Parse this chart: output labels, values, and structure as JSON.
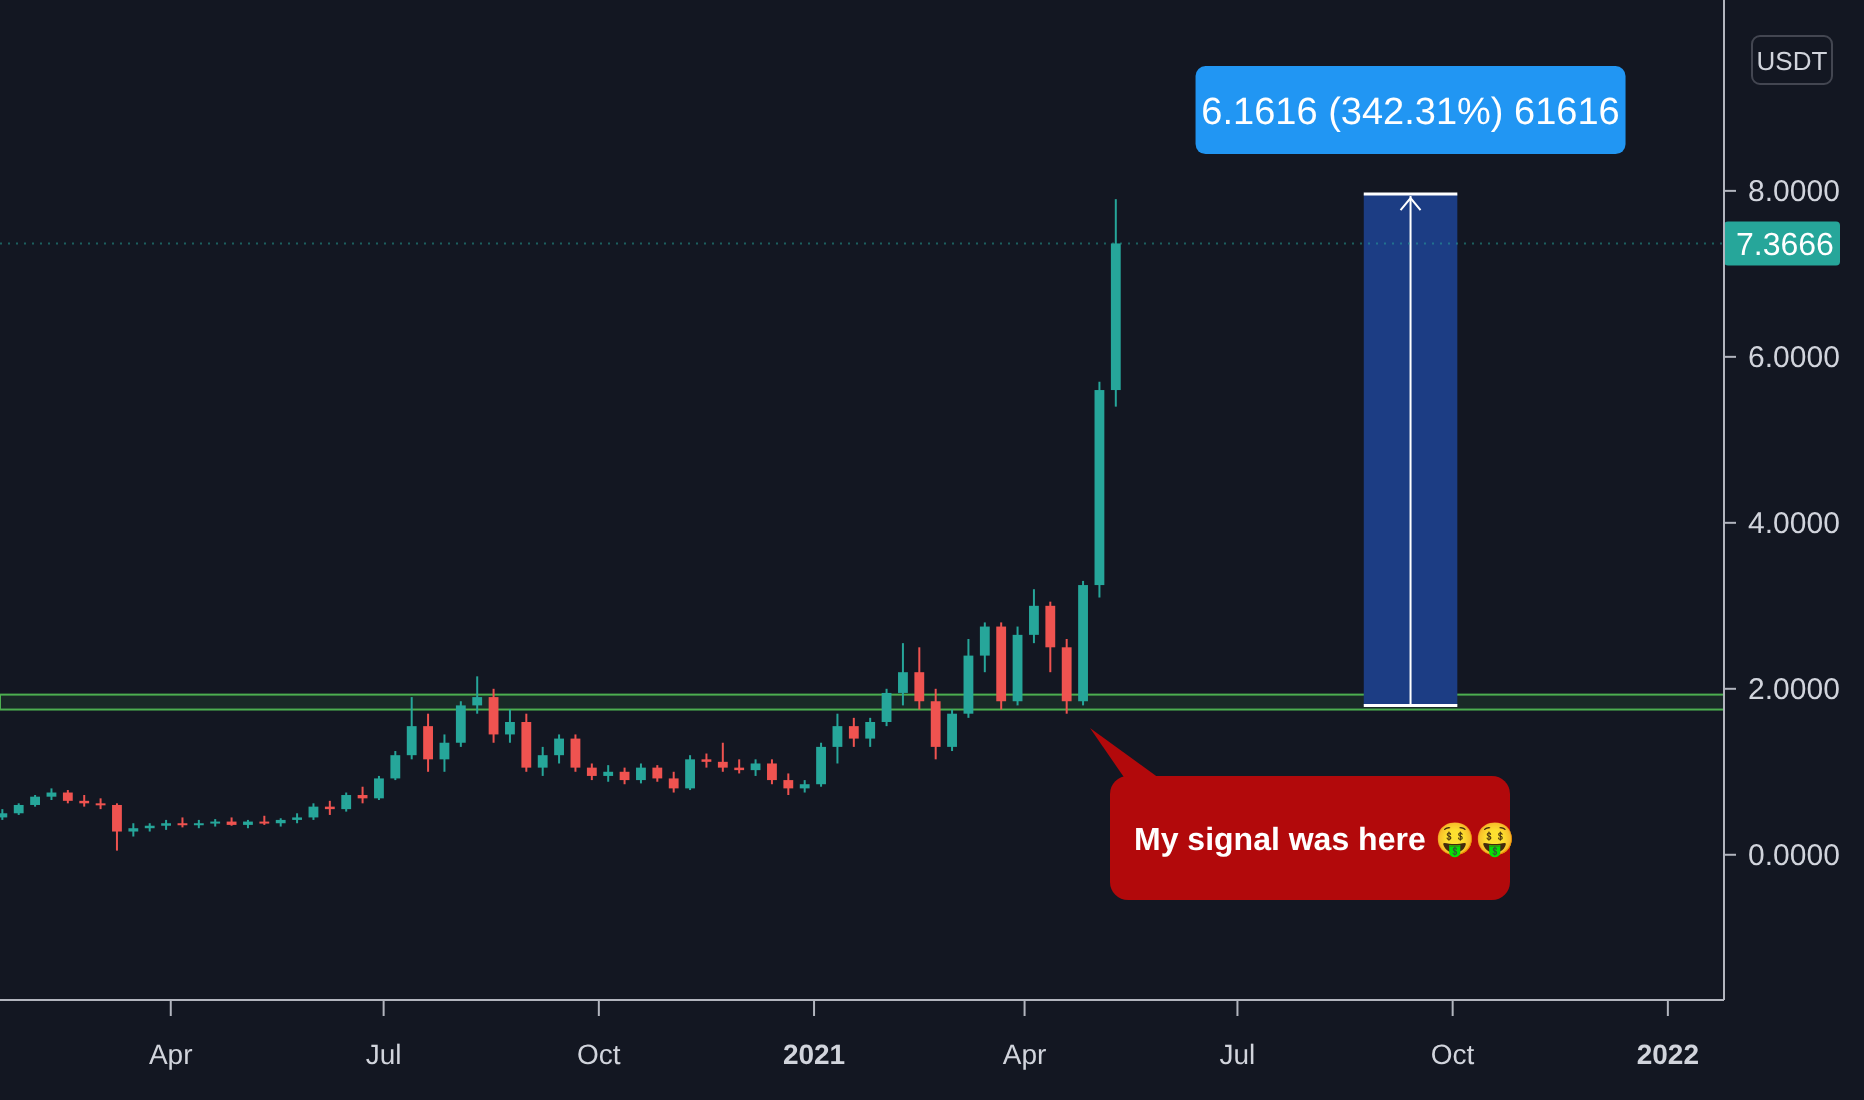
{
  "chart_data": {
    "type": "candlestick",
    "ylabel": "USDT",
    "x": [
      "2020-01-20",
      "2020-01-27",
      "2020-02-03",
      "2020-02-10",
      "2020-02-17",
      "2020-02-24",
      "2020-03-02",
      "2020-03-09",
      "2020-03-16",
      "2020-03-23",
      "2020-03-30",
      "2020-04-06",
      "2020-04-13",
      "2020-04-20",
      "2020-04-27",
      "2020-05-04",
      "2020-05-11",
      "2020-05-18",
      "2020-05-25",
      "2020-06-01",
      "2020-06-08",
      "2020-06-15",
      "2020-06-22",
      "2020-06-29",
      "2020-07-06",
      "2020-07-13",
      "2020-07-20",
      "2020-07-27",
      "2020-08-03",
      "2020-08-10",
      "2020-08-17",
      "2020-08-24",
      "2020-08-31",
      "2020-09-07",
      "2020-09-14",
      "2020-09-21",
      "2020-09-28",
      "2020-10-05",
      "2020-10-12",
      "2020-10-19",
      "2020-10-26",
      "2020-11-02",
      "2020-11-09",
      "2020-11-16",
      "2020-11-23",
      "2020-11-30",
      "2020-12-07",
      "2020-12-14",
      "2020-12-21",
      "2020-12-28",
      "2021-01-04",
      "2021-01-11",
      "2021-01-18",
      "2021-01-25",
      "2021-02-01",
      "2021-02-08",
      "2021-02-15",
      "2021-02-22",
      "2021-03-01",
      "2021-03-08",
      "2021-03-15",
      "2021-03-22",
      "2021-03-29",
      "2021-04-05",
      "2021-04-12",
      "2021-04-19",
      "2021-04-26",
      "2021-05-03",
      "2021-05-10"
    ],
    "ohlc": [
      [
        0.45,
        0.55,
        0.42,
        0.5
      ],
      [
        0.5,
        0.62,
        0.48,
        0.6
      ],
      [
        0.6,
        0.72,
        0.58,
        0.7
      ],
      [
        0.7,
        0.8,
        0.66,
        0.75
      ],
      [
        0.75,
        0.78,
        0.62,
        0.65
      ],
      [
        0.65,
        0.72,
        0.58,
        0.62
      ],
      [
        0.62,
        0.68,
        0.55,
        0.6
      ],
      [
        0.6,
        0.62,
        0.05,
        0.28
      ],
      [
        0.28,
        0.38,
        0.22,
        0.32
      ],
      [
        0.32,
        0.38,
        0.28,
        0.35
      ],
      [
        0.35,
        0.42,
        0.3,
        0.38
      ],
      [
        0.38,
        0.45,
        0.33,
        0.36
      ],
      [
        0.36,
        0.42,
        0.32,
        0.38
      ],
      [
        0.38,
        0.43,
        0.34,
        0.4
      ],
      [
        0.4,
        0.45,
        0.35,
        0.36
      ],
      [
        0.36,
        0.42,
        0.32,
        0.4
      ],
      [
        0.4,
        0.47,
        0.36,
        0.38
      ],
      [
        0.38,
        0.44,
        0.34,
        0.42
      ],
      [
        0.42,
        0.5,
        0.38,
        0.45
      ],
      [
        0.45,
        0.62,
        0.42,
        0.58
      ],
      [
        0.58,
        0.65,
        0.48,
        0.55
      ],
      [
        0.55,
        0.75,
        0.52,
        0.72
      ],
      [
        0.72,
        0.82,
        0.62,
        0.68
      ],
      [
        0.68,
        0.95,
        0.66,
        0.92
      ],
      [
        0.92,
        1.25,
        0.9,
        1.2
      ],
      [
        1.2,
        1.9,
        1.15,
        1.55
      ],
      [
        1.55,
        1.7,
        1.0,
        1.15
      ],
      [
        1.15,
        1.45,
        1.0,
        1.35
      ],
      [
        1.35,
        1.85,
        1.3,
        1.8
      ],
      [
        1.8,
        2.15,
        1.7,
        1.9
      ],
      [
        1.9,
        2.0,
        1.35,
        1.45
      ],
      [
        1.45,
        1.75,
        1.35,
        1.6
      ],
      [
        1.6,
        1.7,
        1.0,
        1.05
      ],
      [
        1.05,
        1.3,
        0.95,
        1.2
      ],
      [
        1.2,
        1.45,
        1.1,
        1.4
      ],
      [
        1.4,
        1.45,
        1.0,
        1.05
      ],
      [
        1.05,
        1.1,
        0.9,
        0.95
      ],
      [
        0.95,
        1.08,
        0.88,
        1.0
      ],
      [
        1.0,
        1.05,
        0.85,
        0.9
      ],
      [
        0.9,
        1.1,
        0.86,
        1.05
      ],
      [
        1.05,
        1.08,
        0.88,
        0.92
      ],
      [
        0.92,
        1.0,
        0.75,
        0.8
      ],
      [
        0.8,
        1.2,
        0.78,
        1.15
      ],
      [
        1.15,
        1.22,
        1.05,
        1.12
      ],
      [
        1.12,
        1.35,
        1.0,
        1.05
      ],
      [
        1.05,
        1.15,
        0.98,
        1.02
      ],
      [
        1.02,
        1.15,
        0.95,
        1.1
      ],
      [
        1.1,
        1.15,
        0.85,
        0.9
      ],
      [
        0.9,
        0.98,
        0.72,
        0.8
      ],
      [
        0.8,
        0.9,
        0.75,
        0.85
      ],
      [
        0.85,
        1.35,
        0.82,
        1.3
      ],
      [
        1.3,
        1.7,
        1.1,
        1.55
      ],
      [
        1.55,
        1.65,
        1.3,
        1.4
      ],
      [
        1.4,
        1.65,
        1.3,
        1.6
      ],
      [
        1.6,
        2.0,
        1.55,
        1.95
      ],
      [
        1.95,
        2.55,
        1.8,
        2.2
      ],
      [
        2.2,
        2.5,
        1.75,
        1.85
      ],
      [
        1.85,
        2.0,
        1.15,
        1.3
      ],
      [
        1.3,
        1.75,
        1.25,
        1.7
      ],
      [
        1.7,
        2.6,
        1.65,
        2.4
      ],
      [
        2.4,
        2.8,
        2.2,
        2.75
      ],
      [
        2.75,
        2.8,
        1.75,
        1.85
      ],
      [
        1.85,
        2.75,
        1.8,
        2.65
      ],
      [
        2.65,
        3.2,
        2.55,
        3.0
      ],
      [
        3.0,
        3.05,
        2.2,
        2.5
      ],
      [
        2.5,
        2.6,
        1.7,
        1.85
      ],
      [
        1.85,
        3.3,
        1.8,
        3.25
      ],
      [
        3.25,
        5.7,
        3.1,
        5.6
      ],
      [
        5.6,
        7.9,
        5.4,
        7.3666
      ]
    ],
    "series": [
      {
        "type": "bar",
        "x": [
          "2021-09-13"
        ],
        "base": [
          1.8
        ],
        "values": [
          6.1616
        ],
        "color": "#1c3d84"
      }
    ],
    "xlim": [
      "2020-01-19",
      "2022-01-25"
    ],
    "xticks": [
      {
        "value": "2020-04-01",
        "label": "Apr"
      },
      {
        "value": "2020-07-01",
        "label": "Jul"
      },
      {
        "value": "2020-10-01",
        "label": "Oct"
      },
      {
        "value": "2021-01-01",
        "label": "2021"
      },
      {
        "value": "2021-04-01",
        "label": "Apr"
      },
      {
        "value": "2021-07-01",
        "label": "Jul"
      },
      {
        "value": "2021-10-01",
        "label": "Oct"
      },
      {
        "value": "2022-01-01",
        "label": "2022"
      }
    ],
    "ylim": [
      -1.75,
      10.3
    ],
    "yticks": [
      {
        "value": 0,
        "label": "0.0000"
      },
      {
        "value": 2,
        "label": "2.0000"
      },
      {
        "value": 4,
        "label": "4.0000"
      },
      {
        "value": 6,
        "label": "6.0000"
      },
      {
        "value": 8,
        "label": "8.0000"
      }
    ],
    "grid": false,
    "bands": [
      {
        "axis": "y",
        "from": 1.75,
        "to": 1.93,
        "color": "#4caf50"
      }
    ],
    "ref_lines": [
      {
        "axis": "y",
        "value": 7.3666,
        "label": "7.3666",
        "color": "#26a69a"
      }
    ],
    "annotations": [
      {
        "text": "6.1616 (342.31%) 61616",
        "x": "2021-09-13",
        "y": 7.9616
      },
      "My signal was here 🤑🤑"
    ]
  }
}
